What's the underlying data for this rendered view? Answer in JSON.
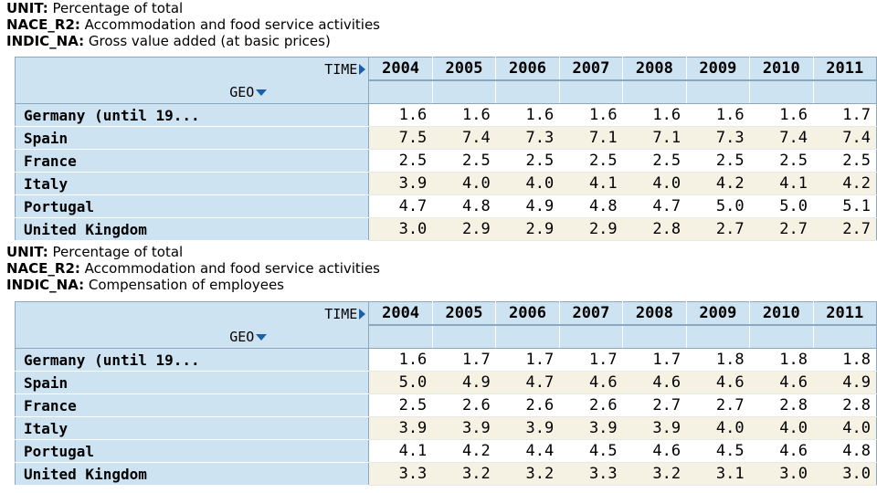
{
  "tables": [
    {
      "meta": [
        {
          "key": "UNIT:",
          "value": " Percentage of total"
        },
        {
          "key": "NACE_R2:",
          "value": " Accommodation and food service activities"
        },
        {
          "key": "INDIC_NA:",
          "value": " Gross value added (at basic prices)"
        }
      ],
      "time_label": "TIME",
      "geo_label": "GEO",
      "years": [
        "2004",
        "2005",
        "2006",
        "2007",
        "2008",
        "2009",
        "2010",
        "2011"
      ],
      "rows": [
        {
          "geo": "Germany (until 19...",
          "values": [
            "1.6",
            "1.6",
            "1.6",
            "1.6",
            "1.6",
            "1.6",
            "1.6",
            "1.7"
          ]
        },
        {
          "geo": "Spain",
          "values": [
            "7.5",
            "7.4",
            "7.3",
            "7.1",
            "7.1",
            "7.3",
            "7.4",
            "7.4"
          ]
        },
        {
          "geo": "France",
          "values": [
            "2.5",
            "2.5",
            "2.5",
            "2.5",
            "2.5",
            "2.5",
            "2.5",
            "2.5"
          ]
        },
        {
          "geo": "Italy",
          "values": [
            "3.9",
            "4.0",
            "4.0",
            "4.1",
            "4.0",
            "4.2",
            "4.1",
            "4.2"
          ]
        },
        {
          "geo": "Portugal",
          "values": [
            "4.7",
            "4.8",
            "4.9",
            "4.8",
            "4.7",
            "5.0",
            "5.0",
            "5.1"
          ]
        },
        {
          "geo": "United Kingdom",
          "values": [
            "3.0",
            "2.9",
            "2.9",
            "2.9",
            "2.8",
            "2.7",
            "2.7",
            "2.7"
          ]
        }
      ]
    },
    {
      "meta": [
        {
          "key": "UNIT:",
          "value": " Percentage of total"
        },
        {
          "key": "NACE_R2:",
          "value": " Accommodation and food service activities"
        },
        {
          "key": "INDIC_NA:",
          "value": " Compensation of employees"
        }
      ],
      "time_label": "TIME",
      "geo_label": "GEO",
      "years": [
        "2004",
        "2005",
        "2006",
        "2007",
        "2008",
        "2009",
        "2010",
        "2011"
      ],
      "rows": [
        {
          "geo": "Germany (until 19...",
          "values": [
            "1.6",
            "1.7",
            "1.7",
            "1.7",
            "1.7",
            "1.8",
            "1.8",
            "1.8"
          ]
        },
        {
          "geo": "Spain",
          "values": [
            "5.0",
            "4.9",
            "4.7",
            "4.6",
            "4.6",
            "4.6",
            "4.6",
            "4.9"
          ]
        },
        {
          "geo": "France",
          "values": [
            "2.5",
            "2.6",
            "2.6",
            "2.6",
            "2.7",
            "2.7",
            "2.8",
            "2.8"
          ]
        },
        {
          "geo": "Italy",
          "values": [
            "3.9",
            "3.9",
            "3.9",
            "3.9",
            "3.9",
            "4.0",
            "4.0",
            "4.0"
          ]
        },
        {
          "geo": "Portugal",
          "values": [
            "4.1",
            "4.2",
            "4.4",
            "4.5",
            "4.6",
            "4.5",
            "4.6",
            "4.8"
          ]
        },
        {
          "geo": "United Kingdom",
          "values": [
            "3.3",
            "3.2",
            "3.2",
            "3.3",
            "3.2",
            "3.1",
            "3.0",
            "3.0"
          ]
        }
      ]
    }
  ]
}
